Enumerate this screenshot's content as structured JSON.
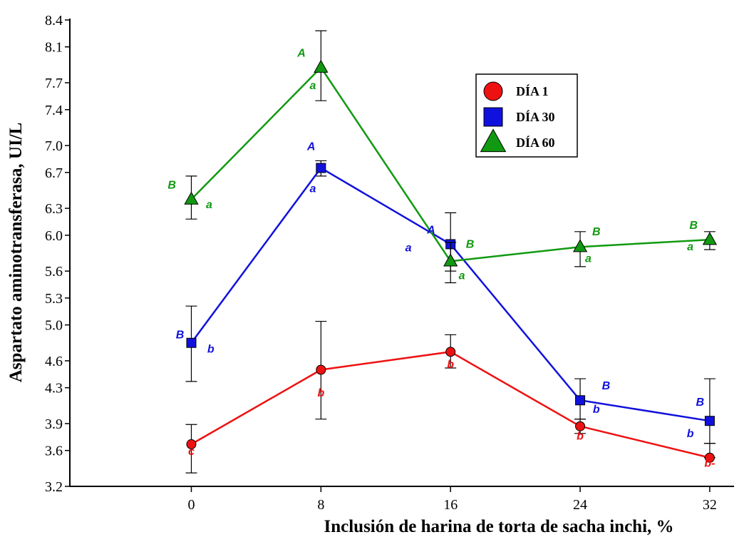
{
  "chart_data": {
    "type": "line",
    "xlabel": "Inclusión de harina de torta de sacha inchi, %",
    "ylabel": "Aspartato aminotransferasa, UI/L",
    "x": [
      0,
      8,
      16,
      24,
      32
    ],
    "xlim": [
      -7.5,
      33.5
    ],
    "ylim": [
      3.2,
      8.4
    ],
    "yticks": [
      3.2,
      3.6,
      3.9,
      4.3,
      4.6,
      5.0,
      5.3,
      5.6,
      6.0,
      6.3,
      6.7,
      7.0,
      7.4,
      7.7,
      8.1,
      8.4
    ],
    "ytick_labels": [
      "3.2",
      "3.6",
      "3.9",
      "4.3",
      "4.6",
      "5.0",
      "5.3",
      "5.6",
      "6.0",
      "6.3",
      "6.7",
      "7.0",
      "7.4",
      "7.7",
      "8.1",
      "8.4"
    ],
    "xtick_labels": [
      "0",
      "8",
      "16",
      "24",
      "32"
    ],
    "legend_position": "top-right",
    "series": [
      {
        "name": "DÍA 1",
        "color": "#ee1111",
        "marker": "circle",
        "values": [
          3.67,
          4.5,
          4.7,
          3.87,
          3.52
        ],
        "err_low": [
          3.35,
          3.95,
          4.52,
          3.79,
          3.52
        ],
        "err_high": [
          3.89,
          5.04,
          4.89,
          3.95,
          3.68
        ],
        "annotations": [
          {
            "text": "c",
            "x": 0,
            "y": 3.55
          },
          {
            "text": "b",
            "x": 8,
            "y": 4.2
          },
          {
            "text": "b",
            "x": 16,
            "y": 4.52
          },
          {
            "text": "b",
            "x": 24,
            "y": 3.72
          },
          {
            "text": "b-",
            "x": 32,
            "y": 3.42
          }
        ]
      },
      {
        "name": "DÍA 30",
        "color": "#1111dd",
        "marker": "square",
        "values": [
          4.8,
          6.75,
          5.9,
          4.16,
          3.93
        ],
        "err_low": [
          4.37,
          6.66,
          5.6,
          3.95,
          3.68
        ],
        "err_high": [
          5.21,
          6.83,
          6.25,
          4.4,
          4.4
        ],
        "annotations": [
          {
            "text": "B",
            "x": -0.7,
            "y": 4.85
          },
          {
            "text": "b",
            "x": 1.2,
            "y": 4.69
          },
          {
            "text": "A",
            "x": 7.4,
            "y": 6.95
          },
          {
            "text": "a",
            "x": 7.5,
            "y": 6.48
          },
          {
            "text": "A",
            "x": 14.8,
            "y": 6.02
          },
          {
            "text": "a",
            "x": 13.4,
            "y": 5.82
          },
          {
            "text": "B",
            "x": 25.6,
            "y": 4.28
          },
          {
            "text": "b",
            "x": 25.0,
            "y": 4.02
          },
          {
            "text": "B",
            "x": 31.4,
            "y": 4.1
          },
          {
            "text": "b",
            "x": 30.8,
            "y": 3.75
          }
        ]
      },
      {
        "name": "DÍA 60",
        "color": "#119911",
        "marker": "triangle",
        "values": [
          6.4,
          7.87,
          5.71,
          5.87,
          5.95
        ],
        "err_low": [
          6.18,
          7.5,
          5.47,
          5.65,
          5.84
        ],
        "err_high": [
          6.66,
          8.28,
          5.92,
          6.04,
          6.04
        ],
        "annotations": [
          {
            "text": "B",
            "x": -1.2,
            "y": 6.52
          },
          {
            "text": "a",
            "x": 1.1,
            "y": 6.3
          },
          {
            "text": "A",
            "x": 6.8,
            "y": 7.99
          },
          {
            "text": "a",
            "x": 7.5,
            "y": 7.63
          },
          {
            "text": "B",
            "x": 17.2,
            "y": 5.86
          },
          {
            "text": "a",
            "x": 16.7,
            "y": 5.51
          },
          {
            "text": "B",
            "x": 25.0,
            "y": 6.0
          },
          {
            "text": "a",
            "x": 24.5,
            "y": 5.7
          },
          {
            "text": "B",
            "x": 31.0,
            "y": 6.07
          },
          {
            "text": "a",
            "x": 30.8,
            "y": 5.83
          }
        ]
      }
    ]
  }
}
